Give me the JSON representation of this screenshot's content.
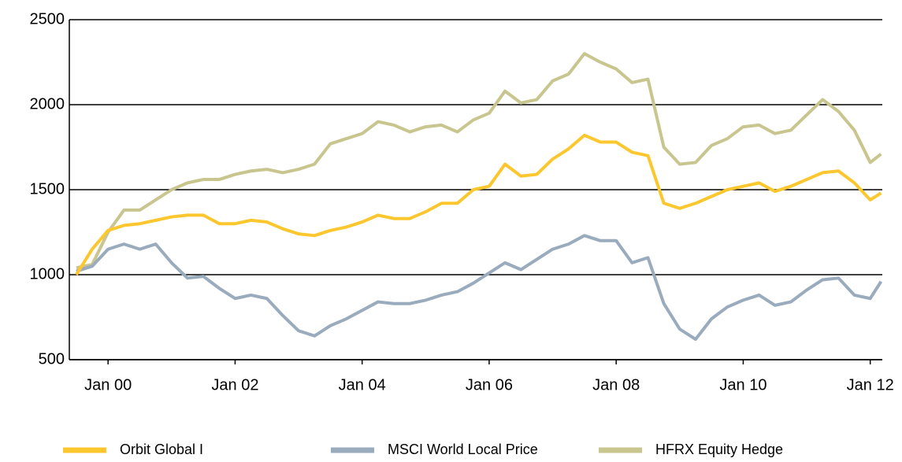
{
  "chart_data": {
    "type": "line",
    "x": [
      1999.5,
      1999.75,
      2000,
      2000.25,
      2000.5,
      2000.75,
      2001,
      2001.25,
      2001.5,
      2001.75,
      2002,
      2002.25,
      2002.5,
      2002.75,
      2003,
      2003.25,
      2003.5,
      2003.75,
      2004,
      2004.25,
      2004.5,
      2004.75,
      2005,
      2005.25,
      2005.5,
      2005.75,
      2006,
      2006.25,
      2006.5,
      2006.75,
      2007,
      2007.25,
      2007.5,
      2007.75,
      2008,
      2008.25,
      2008.5,
      2008.75,
      2009,
      2009.25,
      2009.5,
      2009.75,
      2010,
      2010.25,
      2010.5,
      2010.75,
      2011,
      2011.25,
      2011.5,
      2011.75,
      2012,
      2012.17
    ],
    "series": [
      {
        "name": "Orbit Global I",
        "color": "#fcc72e",
        "values": [
          1000,
          1150,
          1260,
          1290,
          1300,
          1320,
          1340,
          1350,
          1350,
          1300,
          1300,
          1320,
          1310,
          1270,
          1240,
          1230,
          1260,
          1280,
          1310,
          1350,
          1330,
          1330,
          1370,
          1420,
          1420,
          1500,
          1520,
          1650,
          1580,
          1590,
          1680,
          1740,
          1820,
          1780,
          1780,
          1720,
          1700,
          1420,
          1390,
          1420,
          1460,
          1500,
          1520,
          1540,
          1490,
          1520,
          1560,
          1600,
          1610,
          1540,
          1440,
          1480
        ]
      },
      {
        "name": "MSCI World Local Price",
        "color": "#9aabbd",
        "values": [
          1020,
          1050,
          1150,
          1180,
          1150,
          1180,
          1070,
          980,
          990,
          920,
          860,
          880,
          860,
          760,
          670,
          640,
          700,
          740,
          790,
          840,
          830,
          830,
          850,
          880,
          900,
          950,
          1010,
          1070,
          1030,
          1090,
          1150,
          1180,
          1230,
          1200,
          1200,
          1070,
          1100,
          830,
          680,
          620,
          740,
          810,
          850,
          880,
          820,
          840,
          910,
          970,
          980,
          880,
          860,
          960
        ]
      },
      {
        "name": "HFRX Equity Hedge",
        "color": "#c9c58e",
        "values": [
          1040,
          1060,
          1250,
          1380,
          1380,
          1440,
          1500,
          1540,
          1560,
          1560,
          1590,
          1610,
          1620,
          1600,
          1620,
          1650,
          1770,
          1800,
          1830,
          1900,
          1880,
          1840,
          1870,
          1880,
          1840,
          1910,
          1950,
          2080,
          2010,
          2030,
          2140,
          2180,
          2300,
          2250,
          2210,
          2130,
          2150,
          1750,
          1650,
          1660,
          1760,
          1800,
          1870,
          1880,
          1830,
          1850,
          1940,
          2030,
          1960,
          1850,
          1660,
          1710
        ]
      }
    ],
    "xlim": [
      1999.39,
      2012.19
    ],
    "xticks": [
      {
        "value": 2000,
        "label": "Jan 00"
      },
      {
        "value": 2002,
        "label": "Jan 02"
      },
      {
        "value": 2004,
        "label": "Jan 04"
      },
      {
        "value": 2006,
        "label": "Jan 06"
      },
      {
        "value": 2008,
        "label": "Jan 08"
      },
      {
        "value": 2010,
        "label": "Jan 10"
      },
      {
        "value": 2012,
        "label": "Jan 12"
      }
    ],
    "ylim": [
      500,
      2500
    ],
    "yticks": [
      500,
      1000,
      1500,
      2000,
      2500
    ],
    "grid": true,
    "legend": "bottom"
  }
}
